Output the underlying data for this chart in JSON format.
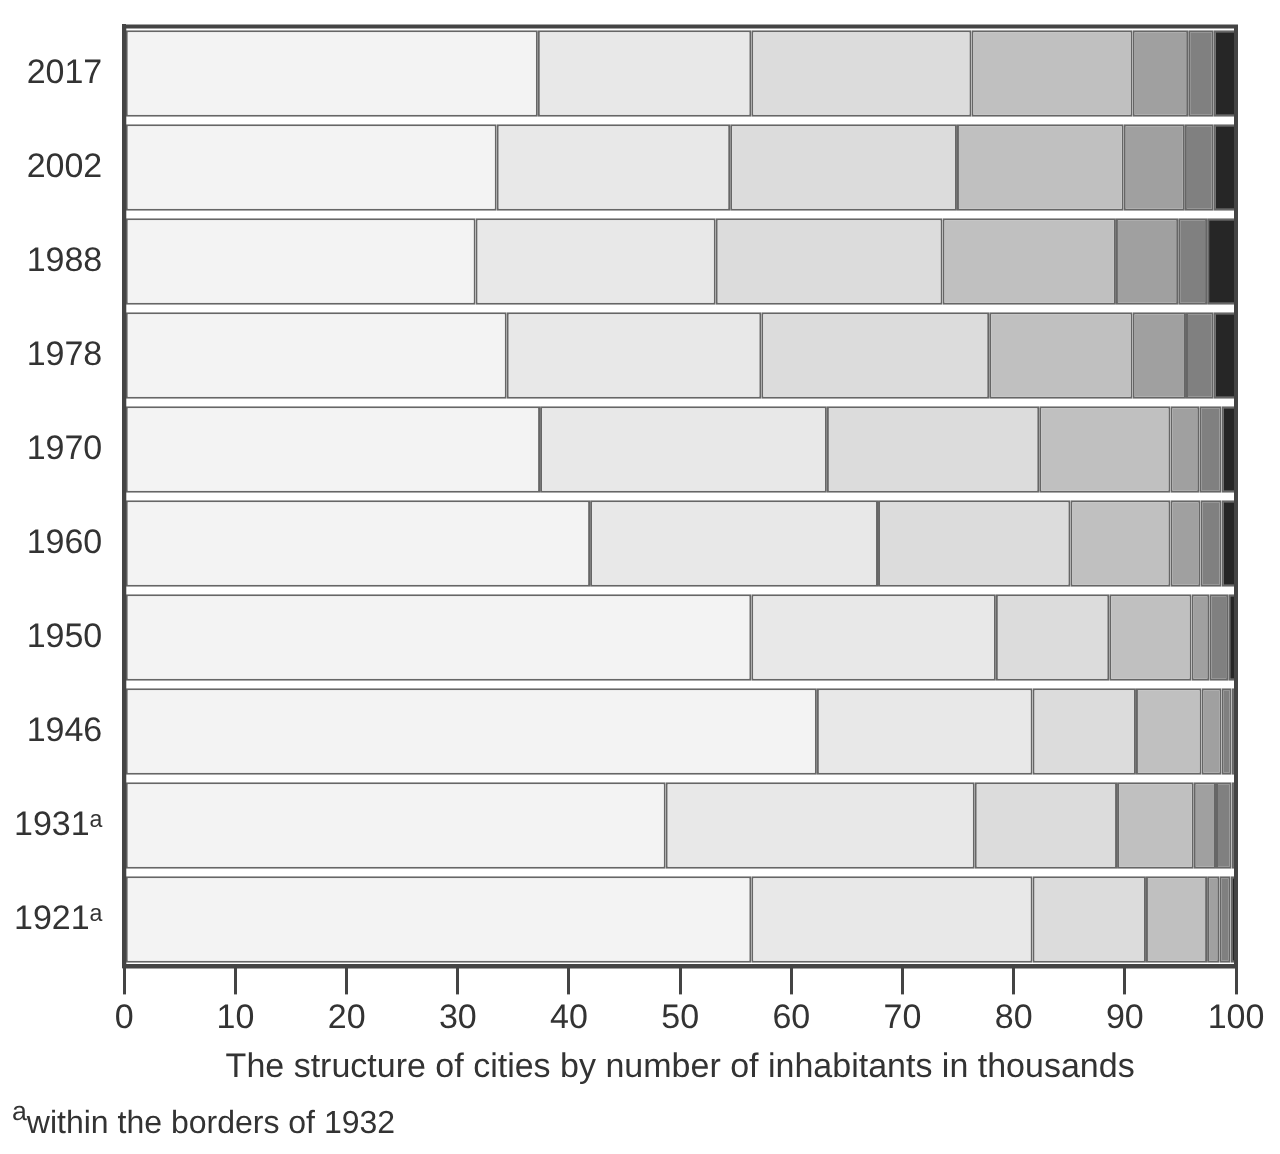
{
  "chart_data": {
    "type": "bar",
    "orientation": "horizontal",
    "stacked": true,
    "xlabel": "The structure of cities by number of inhabitants in thousands",
    "annotations": [
      "$^{a}$within the borders of 1932"
    ],
    "categories": [
      "2017",
      "2002",
      "1988",
      "1978",
      "1970",
      "1960",
      "1950",
      "1946",
      "1931ᵃ",
      "1921ᵃ"
    ],
    "xlim": [
      0,
      100
    ],
    "xticks": [
      0,
      10,
      20,
      30,
      40,
      50,
      60,
      70,
      80,
      90,
      100
    ],
    "grid": false,
    "legend": false,
    "series": [
      {
        "color": "#f3f3f3",
        "values": [
          37.2,
          33.5,
          31.6,
          34.4,
          37.4,
          41.9,
          56.4,
          62.3,
          48.7,
          56.4
        ]
      },
      {
        "color": "#e8e8e8",
        "values": [
          19.2,
          21.0,
          21.6,
          22.9,
          25.8,
          25.9,
          22.0,
          19.4,
          27.8,
          25.3
        ]
      },
      {
        "color": "#dcdcdc",
        "values": [
          19.8,
          20.4,
          20.4,
          20.5,
          19.1,
          17.3,
          10.2,
          9.3,
          12.8,
          10.2
        ]
      },
      {
        "color": "#c0c0c0",
        "values": [
          14.5,
          15.0,
          15.6,
          12.9,
          11.8,
          9.0,
          7.4,
          5.9,
          6.9,
          5.5
        ]
      },
      {
        "color": "#a0a0a0",
        "values": [
          5.0,
          5.5,
          5.6,
          4.8,
          2.6,
          2.7,
          1.6,
          1.8,
          2.0,
          1.1
        ]
      },
      {
        "color": "#808080",
        "values": [
          2.3,
          2.6,
          2.6,
          2.5,
          2.0,
          1.9,
          1.7,
          0.9,
          1.4,
          1.0
        ]
      },
      {
        "color": "#262626",
        "values": [
          2.0,
          2.0,
          2.6,
          2.0,
          1.3,
          1.3,
          0.7,
          0.4,
          0.4,
          0.5
        ]
      }
    ]
  }
}
